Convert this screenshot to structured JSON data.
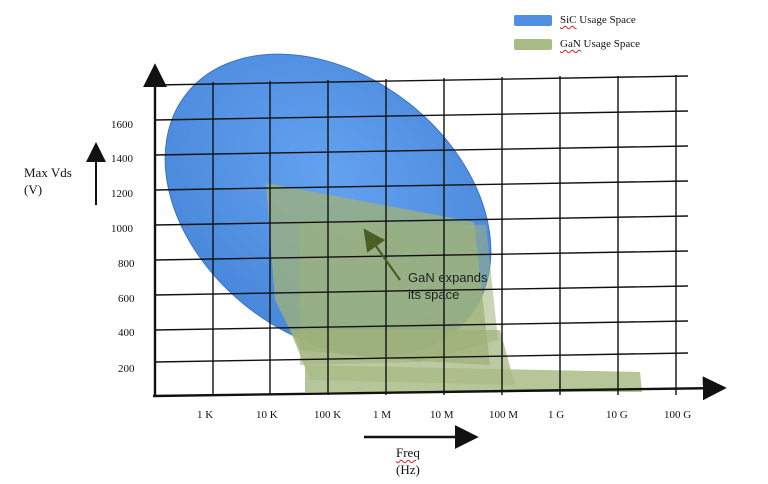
{
  "legend": {
    "items": [
      {
        "label_a": "SiC",
        "label_b": " Usage Space",
        "color": "#4f8ee0"
      },
      {
        "label_a": "GaN",
        "label_b": " Usage Space",
        "color": "#a9bc86"
      }
    ]
  },
  "y_axis": {
    "label_line1": "Max Vds",
    "label_line2": "(V)",
    "ticks": [
      "200",
      "400",
      "600",
      "800",
      "1000",
      "1200",
      "1400",
      "1600"
    ]
  },
  "x_axis": {
    "label_line1": "Freq",
    "label_line2": "(Hz)",
    "ticks": [
      "1 K",
      "10 K",
      "100 K",
      "1 M",
      "10 M",
      "100 M",
      "1 G",
      "10 G",
      "100 G"
    ]
  },
  "annotation": {
    "line1": "GaN expands",
    "line2": "its space"
  },
  "colors": {
    "sic_fill": "#4f8ee0",
    "gan_fill": "#9fb27a",
    "grid": "#111111",
    "arrow": "#556b2f"
  }
}
